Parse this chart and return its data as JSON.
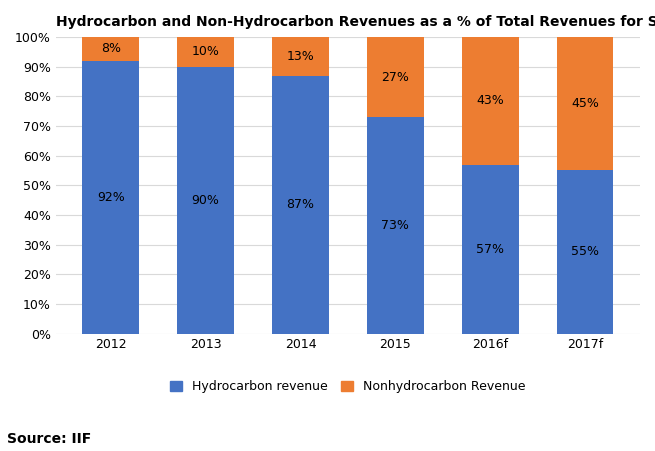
{
  "title": "Hydrocarbon and Non-Hydrocarbon Revenues as a % of Total Revenues for Saudi Arabia",
  "categories": [
    "2012",
    "2013",
    "2014",
    "2015",
    "2016f",
    "2017f"
  ],
  "hydrocarbon": [
    92,
    90,
    87,
    73,
    57,
    55
  ],
  "nonhydrocarbon": [
    8,
    10,
    13,
    27,
    43,
    45
  ],
  "hydro_color": "#4472C4",
  "nonhydro_color": "#ED7D31",
  "hydro_label": "Hydrocarbon revenue",
  "nonhydro_label": "Nonhydrocarbon Revenue",
  "source_text": "Source: IIF",
  "ylim": [
    0,
    100
  ],
  "ytick_labels": [
    "0%",
    "10%",
    "20%",
    "30%",
    "40%",
    "50%",
    "60%",
    "70%",
    "80%",
    "90%",
    "100%"
  ],
  "ytick_values": [
    0,
    10,
    20,
    30,
    40,
    50,
    60,
    70,
    80,
    90,
    100
  ],
  "title_fontsize": 10,
  "label_fontsize": 9,
  "tick_fontsize": 9,
  "legend_fontsize": 9,
  "source_fontsize": 10,
  "bar_width": 0.6,
  "background_color": "#FFFFFF",
  "grid_color": "#D9D9D9"
}
